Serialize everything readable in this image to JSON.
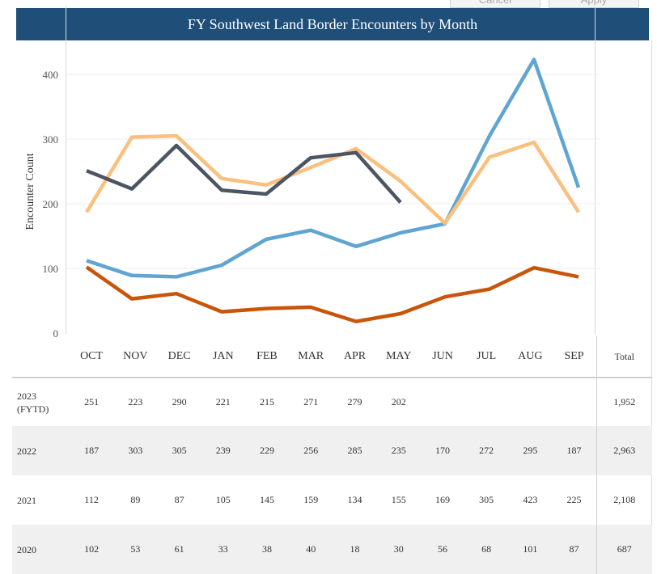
{
  "controls": {
    "cancel_label": "Cancel",
    "apply_label": "Apply"
  },
  "chart_data": {
    "type": "line",
    "title": "FY Southwest Land Border Encounters by Month",
    "ylabel": "Encounter Count",
    "xlabel": "",
    "ylim": [
      0,
      440
    ],
    "yticks": [
      0,
      100,
      200,
      300,
      400
    ],
    "categories": [
      "OCT",
      "NOV",
      "DEC",
      "JAN",
      "FEB",
      "MAR",
      "APR",
      "MAY",
      "JUN",
      "JUL",
      "AUG",
      "SEP"
    ],
    "total_label": "Total",
    "series": [
      {
        "name": "2023 (FYTD)",
        "color": "#4b5563",
        "values": [
          251,
          223,
          290,
          221,
          215,
          271,
          279,
          202,
          null,
          null,
          null,
          null
        ],
        "total": "1,952"
      },
      {
        "name": "2022",
        "color": "#fbbf7e",
        "values": [
          187,
          303,
          305,
          239,
          229,
          256,
          285,
          235,
          170,
          272,
          295,
          187
        ],
        "total": "2,963"
      },
      {
        "name": "2021",
        "color": "#60a5d1",
        "values": [
          112,
          89,
          87,
          105,
          145,
          159,
          134,
          155,
          169,
          305,
          423,
          225
        ],
        "total": "2,108"
      },
      {
        "name": "2020",
        "color": "#c8550a",
        "values": [
          102,
          53,
          61,
          33,
          38,
          40,
          18,
          30,
          56,
          68,
          101,
          87
        ],
        "total": "687"
      }
    ]
  }
}
